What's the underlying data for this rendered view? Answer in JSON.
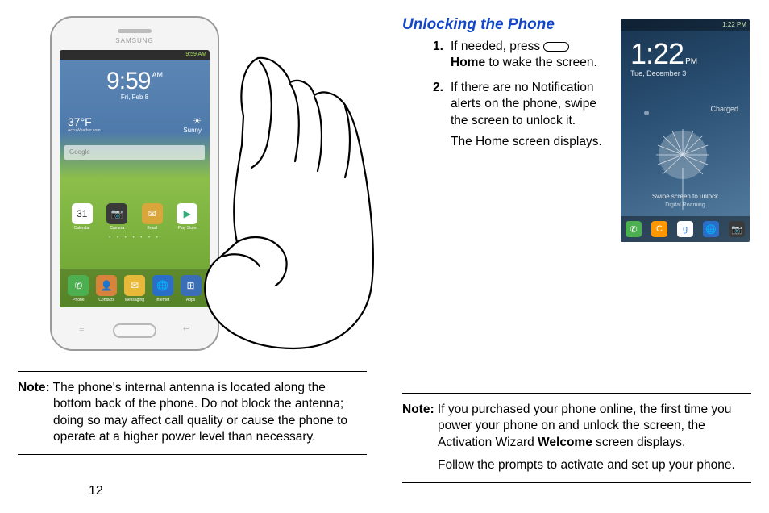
{
  "page_number": "12",
  "left": {
    "phone": {
      "brand": "SAMSUNG",
      "status_time": "9:59 AM",
      "clock_time": "9:59",
      "clock_ampm": "AM",
      "clock_date": "Fri, Feb 8",
      "temp": "37°F",
      "weather_loc": "AccuWeather.com",
      "weather_cond": "Sunny",
      "search_placeholder": "Google",
      "soft_back": "↩",
      "soft_menu": "≡",
      "row_icons": [
        {
          "label": "Calendar",
          "glyph": "31",
          "bg": "#ffffff",
          "fg": "#333333"
        },
        {
          "label": "Camera",
          "glyph": "📷",
          "bg": "#3a3a3a"
        },
        {
          "label": "Email",
          "glyph": "✉",
          "bg": "#d8a63b"
        },
        {
          "label": "Play Store",
          "glyph": "▶",
          "bg": "#ffffff",
          "fg": "#3a7"
        }
      ],
      "dock_icons": [
        {
          "label": "Phone",
          "glyph": "✆",
          "bg": "#4caf50"
        },
        {
          "label": "Contacts",
          "glyph": "👤",
          "bg": "#d8833b"
        },
        {
          "label": "Messaging",
          "glyph": "✉",
          "bg": "#e8b83b"
        },
        {
          "label": "Internet",
          "glyph": "🌐",
          "bg": "#2b6ec7"
        },
        {
          "label": "Apps",
          "glyph": "⊞",
          "bg": "#3b6fb5"
        }
      ]
    },
    "note": {
      "label": "Note:",
      "text": "The phone's internal antenna is located along the bottom back of the phone. Do not block the antenna; doing so may affect call quality or cause the phone to operate at a higher power level than necessary."
    }
  },
  "right": {
    "title": "Unlocking the Phone",
    "steps": [
      {
        "n": "1.",
        "pre": "If needed, press ",
        "key": "Home",
        "post": " to wake the screen."
      },
      {
        "n": "2.",
        "text": "If there are no Notification alerts on the phone, swipe the screen to unlock it.",
        "sub": "The Home screen displays."
      }
    ],
    "lock": {
      "status_time": "1:22 PM",
      "clock_time": "1:22",
      "clock_ampm": "PM",
      "clock_date": "Tue, December 3",
      "charged": "Charged",
      "swipe": "Swipe screen to unlock",
      "carrier": "Digital Roaming",
      "dock": [
        {
          "glyph": "✆",
          "bg": "#4caf50"
        },
        {
          "glyph": "C",
          "bg": "#ff9800"
        },
        {
          "glyph": "g",
          "bg": "#ffffff",
          "fg": "#4285f4"
        },
        {
          "glyph": "🌐",
          "bg": "#2b6ec7"
        },
        {
          "glyph": "📷",
          "bg": "#3a3a3a"
        }
      ]
    },
    "note": {
      "label": "Note:",
      "line1": "If you purchased your phone online, the first time you power your phone on and unlock the screen, the Activation Wizard ",
      "bold": "Welcome",
      "line1b": " screen displays.",
      "line2": "Follow the prompts to activate and set up your phone."
    }
  }
}
